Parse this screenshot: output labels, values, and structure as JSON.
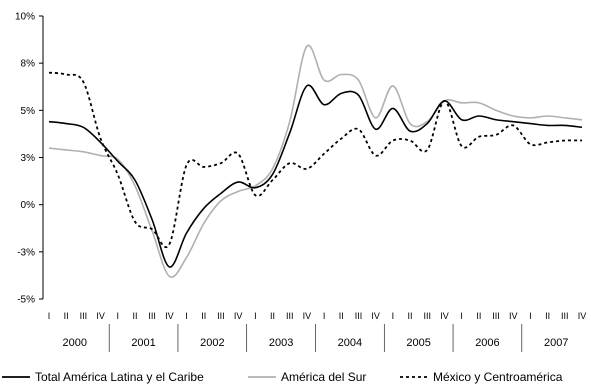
{
  "chart_data": {
    "type": "line",
    "title": "",
    "xlabel": "",
    "ylabel": "",
    "ylim": [
      -5,
      10
    ],
    "y_ticks": [
      "-5%",
      "-3%",
      "0%",
      "3%",
      "5%",
      "8%",
      "10%"
    ],
    "y_tick_values": [
      -5,
      -2.5,
      0,
      2.5,
      5,
      7.5,
      10
    ],
    "grid": false,
    "legend_position": "bottom",
    "years": [
      "2000",
      "2001",
      "2002",
      "2003",
      "2004",
      "2005",
      "2006",
      "2007"
    ],
    "quarters": [
      "I",
      "II",
      "III",
      "IV"
    ],
    "x": [
      "2000-I",
      "2000-II",
      "2000-III",
      "2000-IV",
      "2001-I",
      "2001-II",
      "2001-III",
      "2001-IV",
      "2002-I",
      "2002-II",
      "2002-III",
      "2002-IV",
      "2003-I",
      "2003-II",
      "2003-III",
      "2003-IV",
      "2004-I",
      "2004-II",
      "2004-III",
      "2004-IV",
      "2005-I",
      "2005-II",
      "2005-III",
      "2005-IV",
      "2006-I",
      "2006-II",
      "2006-III",
      "2006-IV",
      "2007-I",
      "2007-II",
      "2007-III",
      "2007-IV"
    ],
    "series": [
      {
        "name": "Total América Latina y el Caribe",
        "color": "#000000",
        "style": "solid",
        "values": [
          4.4,
          4.3,
          4.1,
          3.3,
          2.3,
          1.3,
          -0.8,
          -3.3,
          -1.5,
          -0.2,
          0.6,
          1.2,
          0.9,
          1.6,
          3.8,
          6.3,
          5.3,
          5.9,
          5.8,
          4.0,
          5.1,
          3.9,
          4.3,
          5.5,
          4.5,
          4.7,
          4.5,
          4.4,
          4.3,
          4.2,
          4.2,
          4.1
        ]
      },
      {
        "name": "América del Sur",
        "color": "#b0b0b0",
        "style": "solid",
        "values": [
          3.0,
          2.9,
          2.8,
          2.6,
          2.4,
          1.0,
          -1.4,
          -3.8,
          -2.8,
          -1.0,
          0.2,
          0.7,
          1.0,
          1.9,
          4.4,
          8.4,
          6.6,
          6.9,
          6.6,
          4.6,
          6.3,
          4.3,
          4.4,
          5.5,
          5.4,
          5.4,
          5.0,
          4.7,
          4.6,
          4.7,
          4.6,
          4.5
        ]
      },
      {
        "name": "México y Centroamérica",
        "color": "#000000",
        "style": "dashed",
        "values": [
          7.0,
          6.9,
          6.5,
          3.5,
          1.6,
          -0.9,
          -1.3,
          -2.1,
          2.1,
          2.0,
          2.2,
          2.7,
          0.5,
          1.3,
          2.2,
          1.9,
          2.7,
          3.5,
          4.0,
          2.6,
          3.4,
          3.4,
          2.9,
          5.5,
          3.1,
          3.6,
          3.7,
          4.2,
          3.2,
          3.3,
          3.4,
          3.4
        ]
      }
    ]
  }
}
